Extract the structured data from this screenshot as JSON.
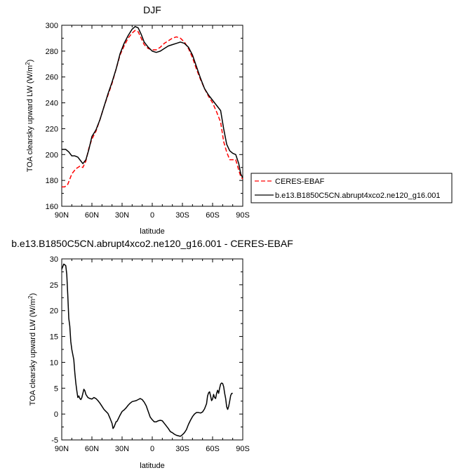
{
  "chart_data": [
    {
      "type": "line",
      "title": "DJF",
      "xlabel": "latitude",
      "ylabel": "TOA clearsky upward LW (W/m",
      "ylabel_sup": "2",
      "ylabel_end": ")",
      "xlim": [
        90,
        -90
      ],
      "ylim": [
        160,
        300
      ],
      "x_ticks": [
        90,
        60,
        30,
        0,
        -30,
        -60,
        -90
      ],
      "x_tick_labels": [
        "90N",
        "60N",
        "30N",
        "0",
        "30S",
        "60S",
        "90S"
      ],
      "y_ticks": [
        160,
        180,
        200,
        220,
        240,
        260,
        280,
        300
      ],
      "y_tick_labels": [
        "160",
        "180",
        "200",
        "220",
        "240",
        "260",
        "280",
        "300"
      ],
      "legend": "outside-right",
      "series": [
        {
          "name": "CERES-EBAF",
          "color": "#ff0000",
          "dash": true,
          "points": [
            [
              90,
              175
            ],
            [
              87,
              175
            ],
            [
              84,
              177
            ],
            [
              80,
              185
            ],
            [
              76,
              189
            ],
            [
              72,
              191
            ],
            [
              69,
              190
            ],
            [
              66,
              195
            ],
            [
              63,
              205
            ],
            [
              60,
              212
            ],
            [
              56,
              218
            ],
            [
              52,
              227
            ],
            [
              48,
              237
            ],
            [
              44,
              246
            ],
            [
              40,
              255
            ],
            [
              36,
              266
            ],
            [
              32,
              277
            ],
            [
              28,
              284
            ],
            [
              24,
              290
            ],
            [
              20,
              294
            ],
            [
              17,
              296
            ],
            [
              14,
              295
            ],
            [
              11,
              290
            ],
            [
              8,
              285
            ],
            [
              4,
              282
            ],
            [
              0,
              281
            ],
            [
              -4,
              281
            ],
            [
              -8,
              283
            ],
            [
              -12,
              286
            ],
            [
              -16,
              288
            ],
            [
              -20,
              290
            ],
            [
              -24,
              291
            ],
            [
              -28,
              290
            ],
            [
              -32,
              287
            ],
            [
              -36,
              282
            ],
            [
              -40,
              275
            ],
            [
              -44,
              266
            ],
            [
              -48,
              258
            ],
            [
              -52,
              251
            ],
            [
              -56,
              245
            ],
            [
              -60,
              240
            ],
            [
              -64,
              233
            ],
            [
              -68,
              225
            ],
            [
              -71,
              210
            ],
            [
              -74,
              202
            ],
            [
              -77,
              196
            ],
            [
              -80,
              196
            ],
            [
              -83,
              196
            ],
            [
              -86,
              188
            ],
            [
              -88,
              183
            ],
            [
              -90,
              181
            ]
          ]
        },
        {
          "name": "b.e13.B1850C5CN.abrupt4xco2.ne120_g16.001",
          "color": "#000000",
          "dash": false,
          "points": [
            [
              90,
              204
            ],
            [
              86,
              204
            ],
            [
              83,
              202
            ],
            [
              80,
              199
            ],
            [
              77,
              199
            ],
            [
              74,
              198
            ],
            [
              71,
              195
            ],
            [
              69,
              193
            ],
            [
              66,
              196
            ],
            [
              63,
              204
            ],
            [
              60,
              214
            ],
            [
              56,
              219
            ],
            [
              52,
              227
            ],
            [
              48,
              237
            ],
            [
              44,
              247
            ],
            [
              40,
              256
            ],
            [
              36,
              266
            ],
            [
              32,
              278
            ],
            [
              28,
              286
            ],
            [
              24,
              292
            ],
            [
              20,
              297
            ],
            [
              17,
              299
            ],
            [
              14,
              298
            ],
            [
              11,
              293
            ],
            [
              8,
              287
            ],
            [
              4,
              283
            ],
            [
              0,
              280
            ],
            [
              -4,
              279
            ],
            [
              -8,
              280
            ],
            [
              -12,
              282
            ],
            [
              -16,
              284
            ],
            [
              -20,
              285
            ],
            [
              -24,
              286
            ],
            [
              -28,
              287
            ],
            [
              -32,
              286
            ],
            [
              -36,
              283
            ],
            [
              -40,
              277
            ],
            [
              -44,
              268
            ],
            [
              -48,
              259
            ],
            [
              -52,
              251
            ],
            [
              -56,
              246
            ],
            [
              -60,
              242
            ],
            [
              -64,
              238
            ],
            [
              -68,
              234
            ],
            [
              -71,
              220
            ],
            [
              -74,
              208
            ],
            [
              -77,
              203
            ],
            [
              -80,
              201
            ],
            [
              -83,
              200
            ],
            [
              -86,
              193
            ],
            [
              -88,
              185
            ],
            [
              -90,
              182
            ]
          ]
        }
      ]
    },
    {
      "type": "line",
      "title": "b.e13.B1850C5CN.abrupt4xco2.ne120_g16.001 - CERES-EBAF",
      "xlabel": "latitude",
      "ylabel": "TOA clearsky upward LW (W/m",
      "ylabel_sup": "2",
      "ylabel_end": ")",
      "xlim": [
        90,
        -90
      ],
      "ylim": [
        -5,
        30
      ],
      "x_ticks": [
        90,
        60,
        30,
        0,
        -30,
        -60,
        -90
      ],
      "x_tick_labels": [
        "90N",
        "60N",
        "30N",
        "0",
        "30S",
        "60S",
        "90S"
      ],
      "y_ticks": [
        -5,
        0,
        5,
        10,
        15,
        20,
        25,
        30
      ],
      "y_tick_labels": [
        "-5",
        "0",
        "5",
        "10",
        "15",
        "20",
        "25",
        "30"
      ],
      "series": [
        {
          "color": "#000000",
          "dash": false,
          "points": [
            [
              90,
              28
            ],
            [
              88,
              29
            ],
            [
              86,
              28.7
            ],
            [
              85,
              27
            ],
            [
              84,
              23
            ],
            [
              83,
              18.5
            ],
            [
              82,
              17
            ],
            [
              81,
              14
            ],
            [
              80,
              12.5
            ],
            [
              78,
              10.5
            ],
            [
              77,
              8
            ],
            [
              76,
              6
            ],
            [
              75,
              4.5
            ],
            [
              74,
              3.2
            ],
            [
              73,
              3.5
            ],
            [
              72,
              3
            ],
            [
              71,
              2.8
            ],
            [
              70,
              3.2
            ],
            [
              69,
              4
            ],
            [
              68,
              4.8
            ],
            [
              67,
              4.5
            ],
            [
              66,
              3.8
            ],
            [
              64,
              3.2
            ],
            [
              62,
              3
            ],
            [
              60,
              2.9
            ],
            [
              58,
              3.2
            ],
            [
              56,
              3
            ],
            [
              54,
              2.6
            ],
            [
              52,
              2.1
            ],
            [
              50,
              1.5
            ],
            [
              48,
              0.9
            ],
            [
              46,
              0.5
            ],
            [
              44,
              0.1
            ],
            [
              42,
              -0.8
            ],
            [
              40,
              -1.8
            ],
            [
              39,
              -2.8
            ],
            [
              38,
              -2.5
            ],
            [
              37,
              -2.0
            ],
            [
              36,
              -1.5
            ],
            [
              35,
              -1.4
            ],
            [
              34,
              -1.0
            ],
            [
              33,
              -0.6
            ],
            [
              32,
              -0.2
            ],
            [
              30,
              0.5
            ],
            [
              28,
              0.8
            ],
            [
              26,
              1.2
            ],
            [
              24,
              1.7
            ],
            [
              22,
              2.1
            ],
            [
              20,
              2.4
            ],
            [
              18,
              2.5
            ],
            [
              16,
              2.6
            ],
            [
              14,
              2.8
            ],
            [
              12,
              3.0
            ],
            [
              10,
              2.8
            ],
            [
              8,
              2.3
            ],
            [
              6,
              1.6
            ],
            [
              4,
              0.5
            ],
            [
              2,
              -0.6
            ],
            [
              0,
              -1.1
            ],
            [
              -2,
              -1.5
            ],
            [
              -4,
              -1.5
            ],
            [
              -6,
              -1.3
            ],
            [
              -8,
              -1.2
            ],
            [
              -10,
              -1.3
            ],
            [
              -12,
              -1.8
            ],
            [
              -14,
              -2.3
            ],
            [
              -16,
              -2.8
            ],
            [
              -18,
              -3.4
            ],
            [
              -20,
              -3.6
            ],
            [
              -22,
              -3.9
            ],
            [
              -24,
              -4.1
            ],
            [
              -26,
              -4.2
            ],
            [
              -28,
              -4.3
            ],
            [
              -30,
              -4.0
            ],
            [
              -32,
              -3.6
            ],
            [
              -34,
              -3.0
            ],
            [
              -36,
              -2.0
            ],
            [
              -38,
              -1.2
            ],
            [
              -40,
              -0.5
            ],
            [
              -42,
              0
            ],
            [
              -44,
              0.3
            ],
            [
              -46,
              0.3
            ],
            [
              -48,
              0.2
            ],
            [
              -50,
              0.4
            ],
            [
              -52,
              1.0
            ],
            [
              -54,
              2.0
            ],
            [
              -55,
              3.5
            ],
            [
              -56,
              4.1
            ],
            [
              -57,
              4.3
            ],
            [
              -58,
              3.5
            ],
            [
              -59,
              2.6
            ],
            [
              -60,
              2.9
            ],
            [
              -61,
              3.8
            ],
            [
              -62,
              3.2
            ],
            [
              -63,
              3.0
            ],
            [
              -64,
              4.0
            ],
            [
              -65,
              4.6
            ],
            [
              -66,
              4.0
            ],
            [
              -67,
              5.0
            ],
            [
              -68,
              5.8
            ],
            [
              -69,
              6.0
            ],
            [
              -70,
              5.9
            ],
            [
              -71,
              5.3
            ],
            [
              -72,
              4.0
            ],
            [
              -73,
              3.0
            ],
            [
              -74,
              1.4
            ],
            [
              -75,
              0.9
            ],
            [
              -76,
              1.5
            ],
            [
              -77,
              2.5
            ],
            [
              -78,
              3.6
            ],
            [
              -79,
              4.0
            ],
            [
              -80,
              4.0
            ]
          ]
        }
      ]
    }
  ]
}
